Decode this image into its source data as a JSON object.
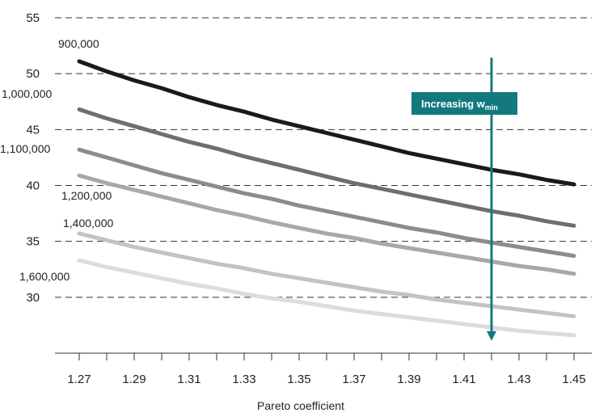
{
  "chart_data": {
    "type": "line",
    "xlabel": "Pareto coefficient",
    "ylabel": "",
    "title": "",
    "x_ticks": [
      "1.27",
      "1.29",
      "1.31",
      "1.33",
      "1.35",
      "1.37",
      "1.39",
      "1.41",
      "1.43",
      "1.45"
    ],
    "y_ticks": [
      "30",
      "35",
      "40",
      "45",
      "50",
      "55"
    ],
    "xlim": [
      1.27,
      1.45
    ],
    "ylim": [
      25,
      55
    ],
    "grid": "horizontal dashed",
    "x": [
      1.27,
      1.28,
      1.29,
      1.3,
      1.31,
      1.32,
      1.33,
      1.34,
      1.35,
      1.36,
      1.37,
      1.38,
      1.39,
      1.4,
      1.41,
      1.42,
      1.43,
      1.44,
      1.45
    ],
    "series": [
      {
        "name": "900,000",
        "color": "#1a1a1a",
        "values": [
          51.1,
          50.2,
          49.4,
          48.7,
          47.9,
          47.2,
          46.6,
          45.9,
          45.3,
          44.7,
          44.1,
          43.5,
          42.9,
          42.4,
          41.9,
          41.4,
          41.0,
          40.5,
          40.1
        ]
      },
      {
        "name": "1,000,000",
        "color": "#6e6e6e",
        "values": [
          46.8,
          46.0,
          45.3,
          44.6,
          43.9,
          43.3,
          42.6,
          42.0,
          41.4,
          40.8,
          40.2,
          39.7,
          39.2,
          38.7,
          38.2,
          37.7,
          37.3,
          36.8,
          36.4
        ]
      },
      {
        "name": "1,100,000",
        "color": "#8c8c8c",
        "values": [
          43.2,
          42.5,
          41.8,
          41.1,
          40.5,
          39.9,
          39.3,
          38.8,
          38.2,
          37.7,
          37.2,
          36.7,
          36.2,
          35.8,
          35.3,
          34.9,
          34.5,
          34.1,
          33.7
        ]
      },
      {
        "name": "1,200,000",
        "color": "#a8a8a8",
        "values": [
          40.9,
          40.2,
          39.6,
          39.0,
          38.4,
          37.8,
          37.3,
          36.7,
          36.2,
          35.7,
          35.3,
          34.8,
          34.4,
          34.0,
          33.6,
          33.2,
          32.8,
          32.5,
          32.1
        ]
      },
      {
        "name": "1,400,000",
        "color": "#c3c3c3",
        "values": [
          35.7,
          35.1,
          34.5,
          34.0,
          33.5,
          33.0,
          32.6,
          32.1,
          31.7,
          31.3,
          30.9,
          30.5,
          30.2,
          29.8,
          29.5,
          29.2,
          28.9,
          28.6,
          28.3
        ]
      },
      {
        "name": "1,600,000",
        "color": "#dcdcdc",
        "values": [
          33.3,
          32.7,
          32.2,
          31.7,
          31.2,
          30.8,
          30.3,
          29.9,
          29.6,
          29.2,
          28.8,
          28.5,
          28.2,
          27.9,
          27.6,
          27.3,
          27.0,
          26.8,
          26.6
        ]
      }
    ],
    "annotation": {
      "text": "Increasing w",
      "subscript": "min",
      "color": "#127a7f",
      "arrow_x": 1.42,
      "arrow_from_y": 52,
      "arrow_to_y": 26.1
    }
  }
}
